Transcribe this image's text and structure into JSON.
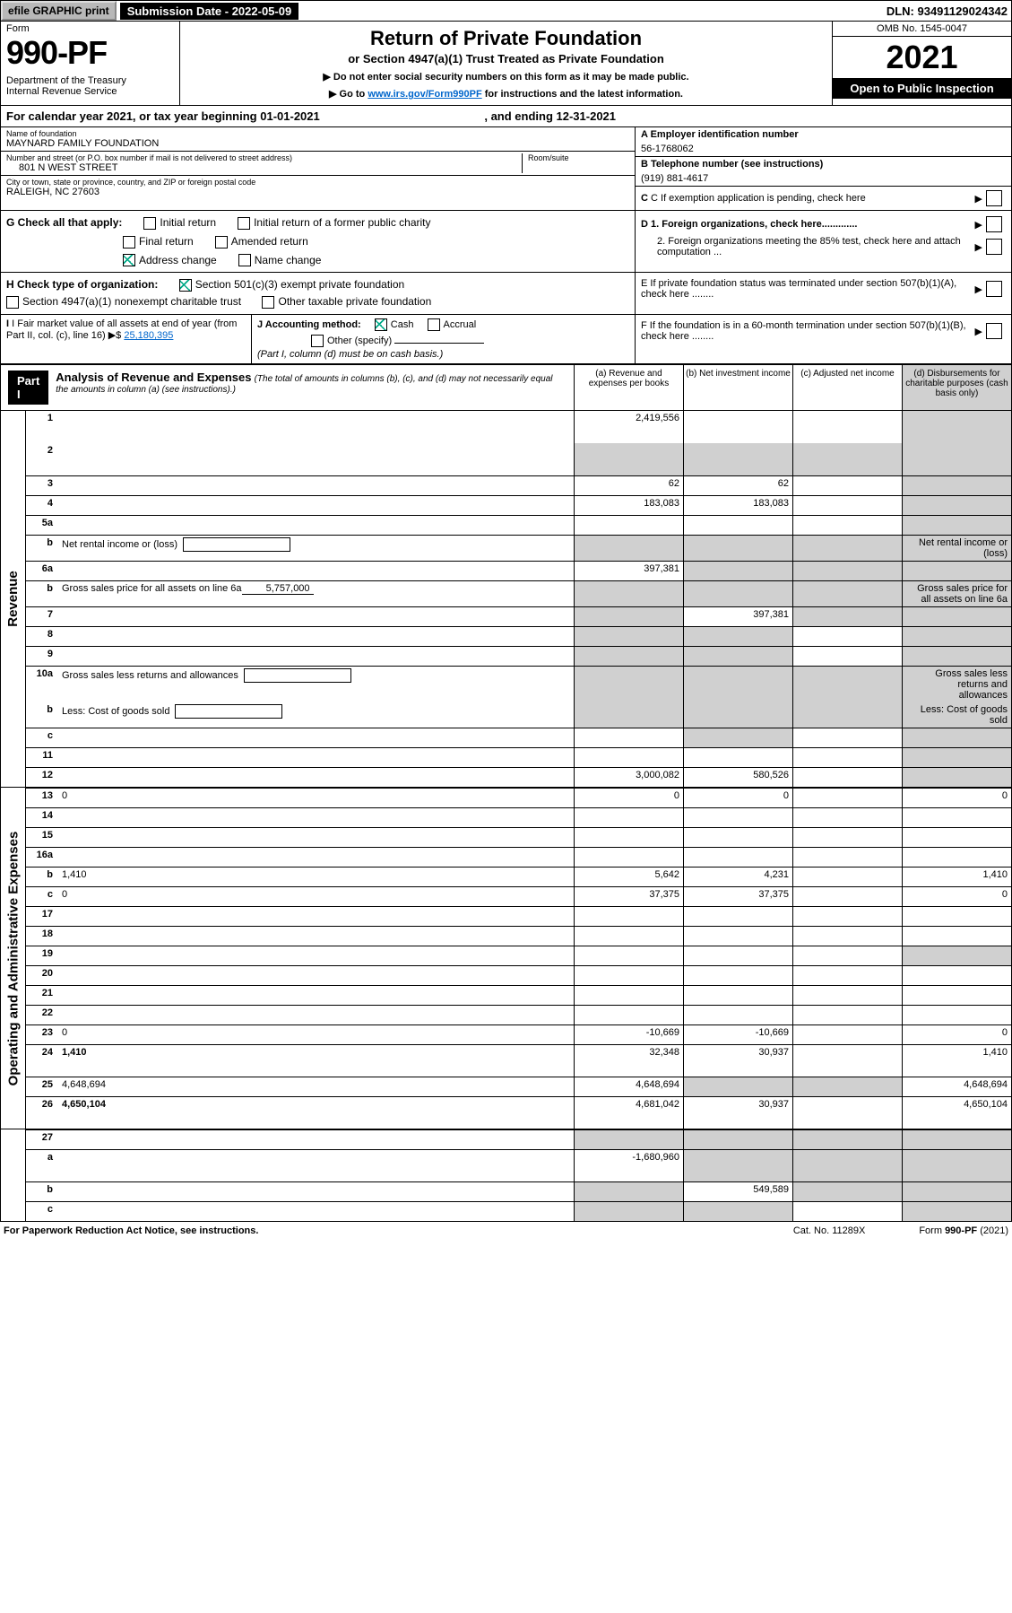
{
  "topbar": {
    "efile": "efile GRAPHIC print",
    "sub_label": "Submission Date - 2022-05-09",
    "dln": "DLN: 93491129024342"
  },
  "header": {
    "form_label": "Form",
    "form_no": "990-PF",
    "dept": "Department of the Treasury\nInternal Revenue Service",
    "title": "Return of Private Foundation",
    "subtitle": "or Section 4947(a)(1) Trust Treated as Private Foundation",
    "instr1": "▶ Do not enter social security numbers on this form as it may be made public.",
    "instr2_pre": "▶ Go to ",
    "instr2_link": "www.irs.gov/Form990PF",
    "instr2_post": " for instructions and the latest information.",
    "omb": "OMB No. 1545-0047",
    "year": "2021",
    "open": "Open to Public Inspection"
  },
  "cal_year": {
    "prefix": "For calendar year 2021, or tax year beginning ",
    "start": "01-01-2021",
    "mid": " , and ending ",
    "end": "12-31-2021"
  },
  "info": {
    "name_lbl": "Name of foundation",
    "name_val": "MAYNARD FAMILY FOUNDATION",
    "addr_lbl": "Number and street (or P.O. box number if mail is not delivered to street address)",
    "addr_val": "801 N WEST STREET",
    "room_lbl": "Room/suite",
    "city_lbl": "City or town, state or province, country, and ZIP or foreign postal code",
    "city_val": "RALEIGH, NC  27603",
    "ein_lbl": "A Employer identification number",
    "ein_val": "56-1768062",
    "tel_lbl": "B Telephone number (see instructions)",
    "tel_val": "(919) 881-4617",
    "c_lbl": "C If exemption application is pending, check here",
    "d1": "D 1. Foreign organizations, check here.............",
    "d2": "2. Foreign organizations meeting the 85% test, check here and attach computation ...",
    "e_lbl": "E  If private foundation status was terminated under section 507(b)(1)(A), check here ........",
    "f_lbl": "F  If the foundation is in a 60-month termination under section 507(b)(1)(B), check here ........"
  },
  "checks": {
    "g_lbl": "G Check all that apply:",
    "g_initial": "Initial return",
    "g_initial_former": "Initial return of a former public charity",
    "g_final": "Final return",
    "g_amended": "Amended return",
    "g_addr": "Address change",
    "g_name": "Name change",
    "h_lbl": "H Check type of organization:",
    "h_501": "Section 501(c)(3) exempt private foundation",
    "h_4947": "Section 4947(a)(1) nonexempt charitable trust",
    "h_other": "Other taxable private foundation",
    "i_lbl": "I Fair market value of all assets at end of year (from Part II, col. (c), line 16)",
    "i_val": "25,180,395",
    "j_lbl": "J Accounting method:",
    "j_cash": "Cash",
    "j_accrual": "Accrual",
    "j_other": "Other (specify)",
    "j_note": "(Part I, column (d) must be on cash basis.)"
  },
  "part1": {
    "label": "Part I",
    "title": "Analysis of Revenue and Expenses",
    "title_note": "(The total of amounts in columns (b), (c), and (d) may not necessarily equal the amounts in column (a) (see instructions).)",
    "cols": {
      "a": "(a) Revenue and expenses per books",
      "b": "(b) Net investment income",
      "c": "(c) Adjusted net income",
      "d": "(d) Disbursements for charitable purposes (cash basis only)"
    }
  },
  "sides": {
    "rev": "Revenue",
    "exp": "Operating and Administrative Expenses"
  },
  "rows": [
    {
      "n": "1",
      "d": "",
      "a": "2,419,556",
      "b": "",
      "c": "",
      "tall": true,
      "d_gray": true
    },
    {
      "n": "2",
      "d": "",
      "a": "",
      "b": "",
      "c": "",
      "tall": true,
      "a_gray": true,
      "b_gray": true,
      "c_gray": true,
      "d_gray": true
    },
    {
      "n": "3",
      "d": "",
      "a": "62",
      "b": "62",
      "c": "",
      "d_gray": true,
      "bordered": true
    },
    {
      "n": "4",
      "d": "",
      "a": "183,083",
      "b": "183,083",
      "c": "",
      "d_gray": true,
      "bordered": true
    },
    {
      "n": "5a",
      "d": "",
      "a": "",
      "b": "",
      "c": "",
      "d_gray": true,
      "bordered": true
    },
    {
      "n": "b",
      "d": "Net rental income or (loss)",
      "inline": true,
      "a_gray": true,
      "b_gray": true,
      "c_gray": true,
      "d_gray": true,
      "bordered": true
    },
    {
      "n": "6a",
      "d": "",
      "a": "397,381",
      "b": "",
      "c": "",
      "b_gray": true,
      "c_gray": true,
      "d_gray": true,
      "bordered": true
    },
    {
      "n": "b",
      "d": "Gross sales price for all assets on line 6a",
      "uval": "5,757,000",
      "a_gray": true,
      "b_gray": true,
      "c_gray": true,
      "d_gray": true,
      "bordered": true
    },
    {
      "n": "7",
      "d": "",
      "a": "",
      "b": "397,381",
      "c": "",
      "a_gray": true,
      "c_gray": true,
      "d_gray": true,
      "bordered": true
    },
    {
      "n": "8",
      "d": "",
      "a": "",
      "b": "",
      "c": "",
      "a_gray": true,
      "b_gray": true,
      "d_gray": true,
      "bordered": true
    },
    {
      "n": "9",
      "d": "",
      "a": "",
      "b": "",
      "c": "",
      "a_gray": true,
      "b_gray": true,
      "d_gray": true,
      "bordered": true
    },
    {
      "n": "10a",
      "d": "Gross sales less returns and allowances",
      "inline": true,
      "a_gray": true,
      "b_gray": true,
      "c_gray": true,
      "d_gray": true,
      "bordered": true
    },
    {
      "n": "b",
      "d": "Less: Cost of goods sold",
      "inline": true,
      "a_gray": true,
      "b_gray": true,
      "c_gray": true,
      "d_gray": true
    },
    {
      "n": "c",
      "d": "",
      "a": "",
      "b": "",
      "c": "",
      "b_gray": true,
      "d_gray": true,
      "bordered": true
    },
    {
      "n": "11",
      "d": "",
      "a": "",
      "b": "",
      "c": "",
      "d_gray": true,
      "bordered": true
    },
    {
      "n": "12",
      "d": "",
      "bold": true,
      "a": "3,000,082",
      "b": "580,526",
      "c": "",
      "d_gray": true,
      "bordered": true
    }
  ],
  "exp_rows": [
    {
      "n": "13",
      "d": "0",
      "a": "0",
      "b": "0",
      "c": "",
      "bordered": true
    },
    {
      "n": "14",
      "d": "",
      "a": "",
      "b": "",
      "c": "",
      "bordered": true
    },
    {
      "n": "15",
      "d": "",
      "a": "",
      "b": "",
      "c": "",
      "bordered": true
    },
    {
      "n": "16a",
      "d": "",
      "a": "",
      "b": "",
      "c": "",
      "bordered": true
    },
    {
      "n": "b",
      "d": "1,410",
      "a": "5,642",
      "b": "4,231",
      "c": "",
      "bordered": true
    },
    {
      "n": "c",
      "d": "0",
      "a": "37,375",
      "b": "37,375",
      "c": "",
      "bordered": true
    },
    {
      "n": "17",
      "d": "",
      "a": "",
      "b": "",
      "c": "",
      "bordered": true
    },
    {
      "n": "18",
      "d": "",
      "a": "",
      "b": "",
      "c": "",
      "bordered": true
    },
    {
      "n": "19",
      "d": "",
      "a": "",
      "b": "",
      "c": "",
      "d_gray": true,
      "bordered": true
    },
    {
      "n": "20",
      "d": "",
      "a": "",
      "b": "",
      "c": "",
      "bordered": true
    },
    {
      "n": "21",
      "d": "",
      "a": "",
      "b": "",
      "c": "",
      "bordered": true
    },
    {
      "n": "22",
      "d": "",
      "a": "",
      "b": "",
      "c": "",
      "bordered": true
    },
    {
      "n": "23",
      "d": "0",
      "a": "-10,669",
      "b": "-10,669",
      "c": "",
      "bordered": true
    },
    {
      "n": "24",
      "d": "1,410",
      "bold": true,
      "a": "32,348",
      "b": "30,937",
      "c": "",
      "tall": true,
      "bordered": true
    },
    {
      "n": "25",
      "d": "4,648,694",
      "a": "4,648,694",
      "b": "",
      "c": "",
      "b_gray": true,
      "c_gray": true,
      "bordered": true
    },
    {
      "n": "26",
      "d": "4,650,104",
      "bold": true,
      "a": "4,681,042",
      "b": "30,937",
      "c": "",
      "tall": true,
      "bordered": true
    }
  ],
  "bottom_rows": [
    {
      "n": "27",
      "d": "",
      "a": "",
      "b": "",
      "c": "",
      "a_gray": true,
      "b_gray": true,
      "c_gray": true,
      "d_gray": true,
      "bordered": true
    },
    {
      "n": "a",
      "d": "",
      "bold": true,
      "a": "-1,680,960",
      "b": "",
      "c": "",
      "b_gray": true,
      "c_gray": true,
      "d_gray": true,
      "bordered": true,
      "tall": true
    },
    {
      "n": "b",
      "d": "",
      "bold": true,
      "a": "",
      "b": "549,589",
      "c": "",
      "a_gray": true,
      "c_gray": true,
      "d_gray": true,
      "bordered": true
    },
    {
      "n": "c",
      "d": "",
      "bold": true,
      "a": "",
      "b": "",
      "c": "",
      "a_gray": true,
      "b_gray": true,
      "d_gray": true,
      "bordered": true
    }
  ],
  "footer": {
    "left": "For Paperwork Reduction Act Notice, see instructions.",
    "mid": "Cat. No. 11289X",
    "right": "Form 990-PF (2021)"
  }
}
